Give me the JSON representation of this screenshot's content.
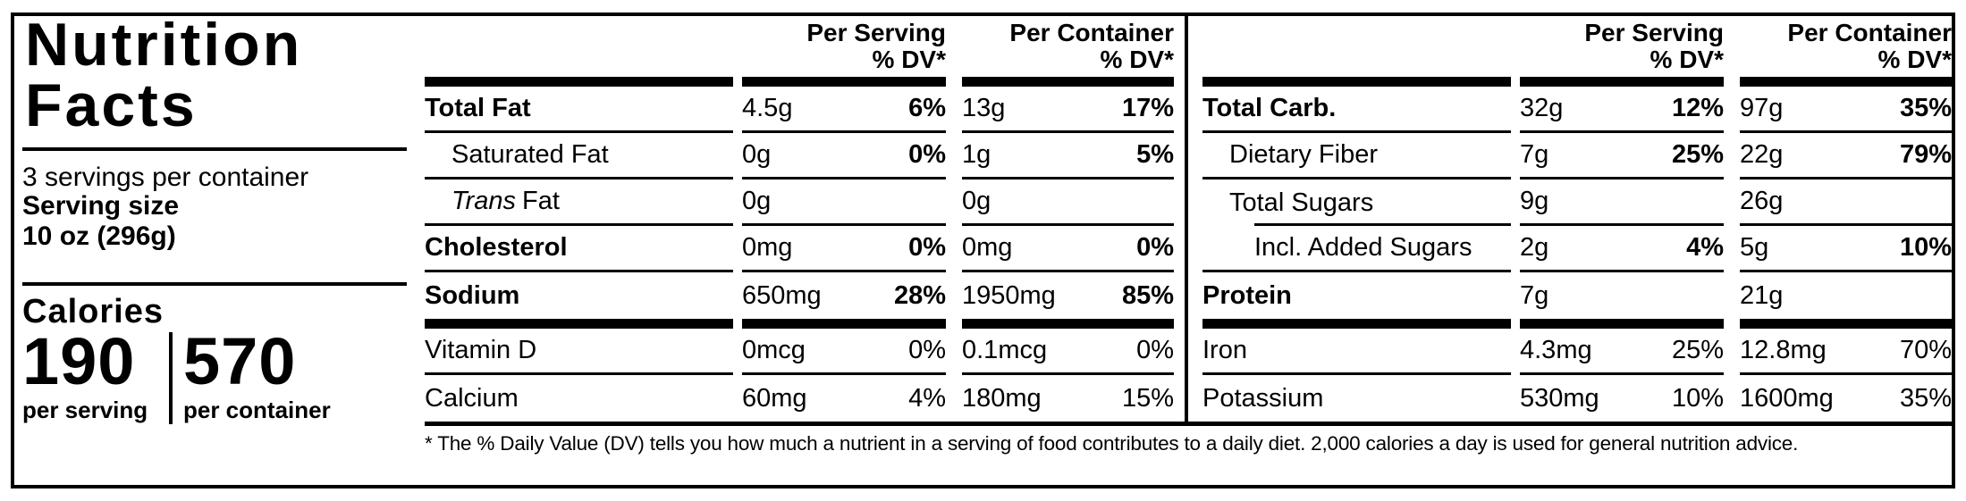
{
  "colors": {
    "ink": "#000000",
    "paper": "#ffffff"
  },
  "label": {
    "title_line1": "Nutrition",
    "title_line2": "Facts",
    "servings_per_container": "3 servings per container",
    "serving_size_label": "Serving size",
    "serving_size_value": "10 oz (296g)",
    "calories_label": "Calories",
    "calories": {
      "per_serving_value": "190",
      "per_serving_caption": "per serving",
      "per_container_value": "570",
      "per_container_caption": "per container"
    }
  },
  "column_headers": {
    "serving": "Per Serving",
    "container": "Per Container",
    "dv": "% DV*"
  },
  "tables": {
    "mid": {
      "rows": [
        {
          "name": "Total Fat",
          "serving_amount": "4.5g",
          "serving_dv": "6%",
          "container_amount": "13g",
          "container_dv": "17%"
        },
        {
          "name": "Saturated Fat",
          "serving_amount": "0g",
          "serving_dv": "0%",
          "container_amount": "1g",
          "container_dv": "5%"
        },
        {
          "name_italic": "Trans",
          "name": "Fat",
          "serving_amount": "0g",
          "serving_dv": "",
          "container_amount": "0g",
          "container_dv": ""
        },
        {
          "name": "Cholesterol",
          "serving_amount": "0mg",
          "serving_dv": "0%",
          "container_amount": "0mg",
          "container_dv": "0%"
        },
        {
          "name": "Sodium",
          "serving_amount": "650mg",
          "serving_dv": "28%",
          "container_amount": "1950mg",
          "container_dv": "85%"
        },
        {
          "name": "Vitamin D",
          "serving_amount": "0mcg",
          "serving_dv": "0%",
          "container_amount": "0.1mcg",
          "container_dv": "0%"
        },
        {
          "name": "Calcium",
          "serving_amount": "60mg",
          "serving_dv": "4%",
          "container_amount": "180mg",
          "container_dv": "15%"
        }
      ]
    },
    "right": {
      "rows": [
        {
          "name": "Total Carb.",
          "serving_amount": "32g",
          "serving_dv": "12%",
          "container_amount": "97g",
          "container_dv": "35%"
        },
        {
          "name": "Dietary Fiber",
          "serving_amount": "7g",
          "serving_dv": "25%",
          "container_amount": "22g",
          "container_dv": "79%"
        },
        {
          "name": "Total Sugars",
          "serving_amount": "9g",
          "serving_dv": "",
          "container_amount": "26g",
          "container_dv": ""
        },
        {
          "name": "Incl. Added Sugars",
          "serving_amount": "2g",
          "serving_dv": "4%",
          "container_amount": "5g",
          "container_dv": "10%"
        },
        {
          "name": "Protein",
          "serving_amount": "7g",
          "serving_dv": "",
          "container_amount": "21g",
          "container_dv": ""
        },
        {
          "name": "Iron",
          "serving_amount": "4.3mg",
          "serving_dv": "25%",
          "container_amount": "12.8mg",
          "container_dv": "70%"
        },
        {
          "name": "Potassium",
          "serving_amount": "530mg",
          "serving_dv": "10%",
          "container_amount": "1600mg",
          "container_dv": "35%"
        }
      ]
    }
  },
  "footnote": "* The % Daily Value (DV) tells you how much a nutrient in a serving of food contributes to a daily diet. 2,000 calories a day is used for general nutrition advice."
}
